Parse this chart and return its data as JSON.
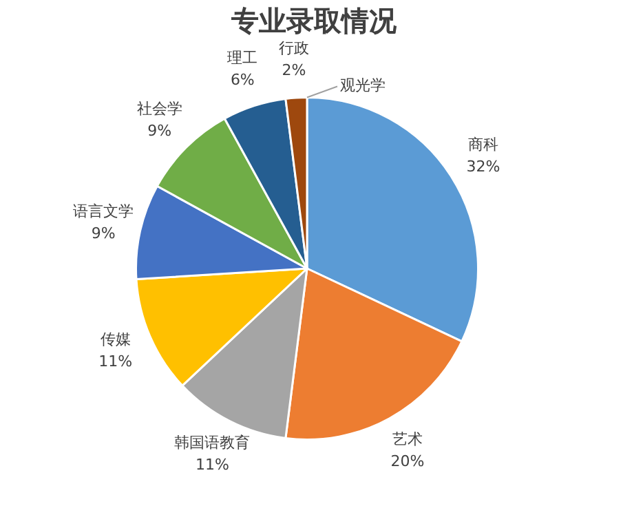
{
  "chart_data": {
    "type": "pie",
    "title": "专业录取情况",
    "categories": [
      "商科",
      "艺术",
      "韩国语教育",
      "传媒",
      "语言文学",
      "社会学",
      "理工",
      "行政",
      "观光学"
    ],
    "values": [
      32,
      20,
      11,
      11,
      9,
      9,
      6,
      2,
      0
    ],
    "value_labels": [
      "32%",
      "20%",
      "11%",
      "11%",
      "9%",
      "9%",
      "6%",
      "2%",
      null
    ],
    "colors": [
      "#5b9bd5",
      "#ed7d31",
      "#a5a5a5",
      "#ffc000",
      "#4472c4",
      "#70ad47",
      "#255e91",
      "#9e480e",
      "#636363"
    ]
  }
}
